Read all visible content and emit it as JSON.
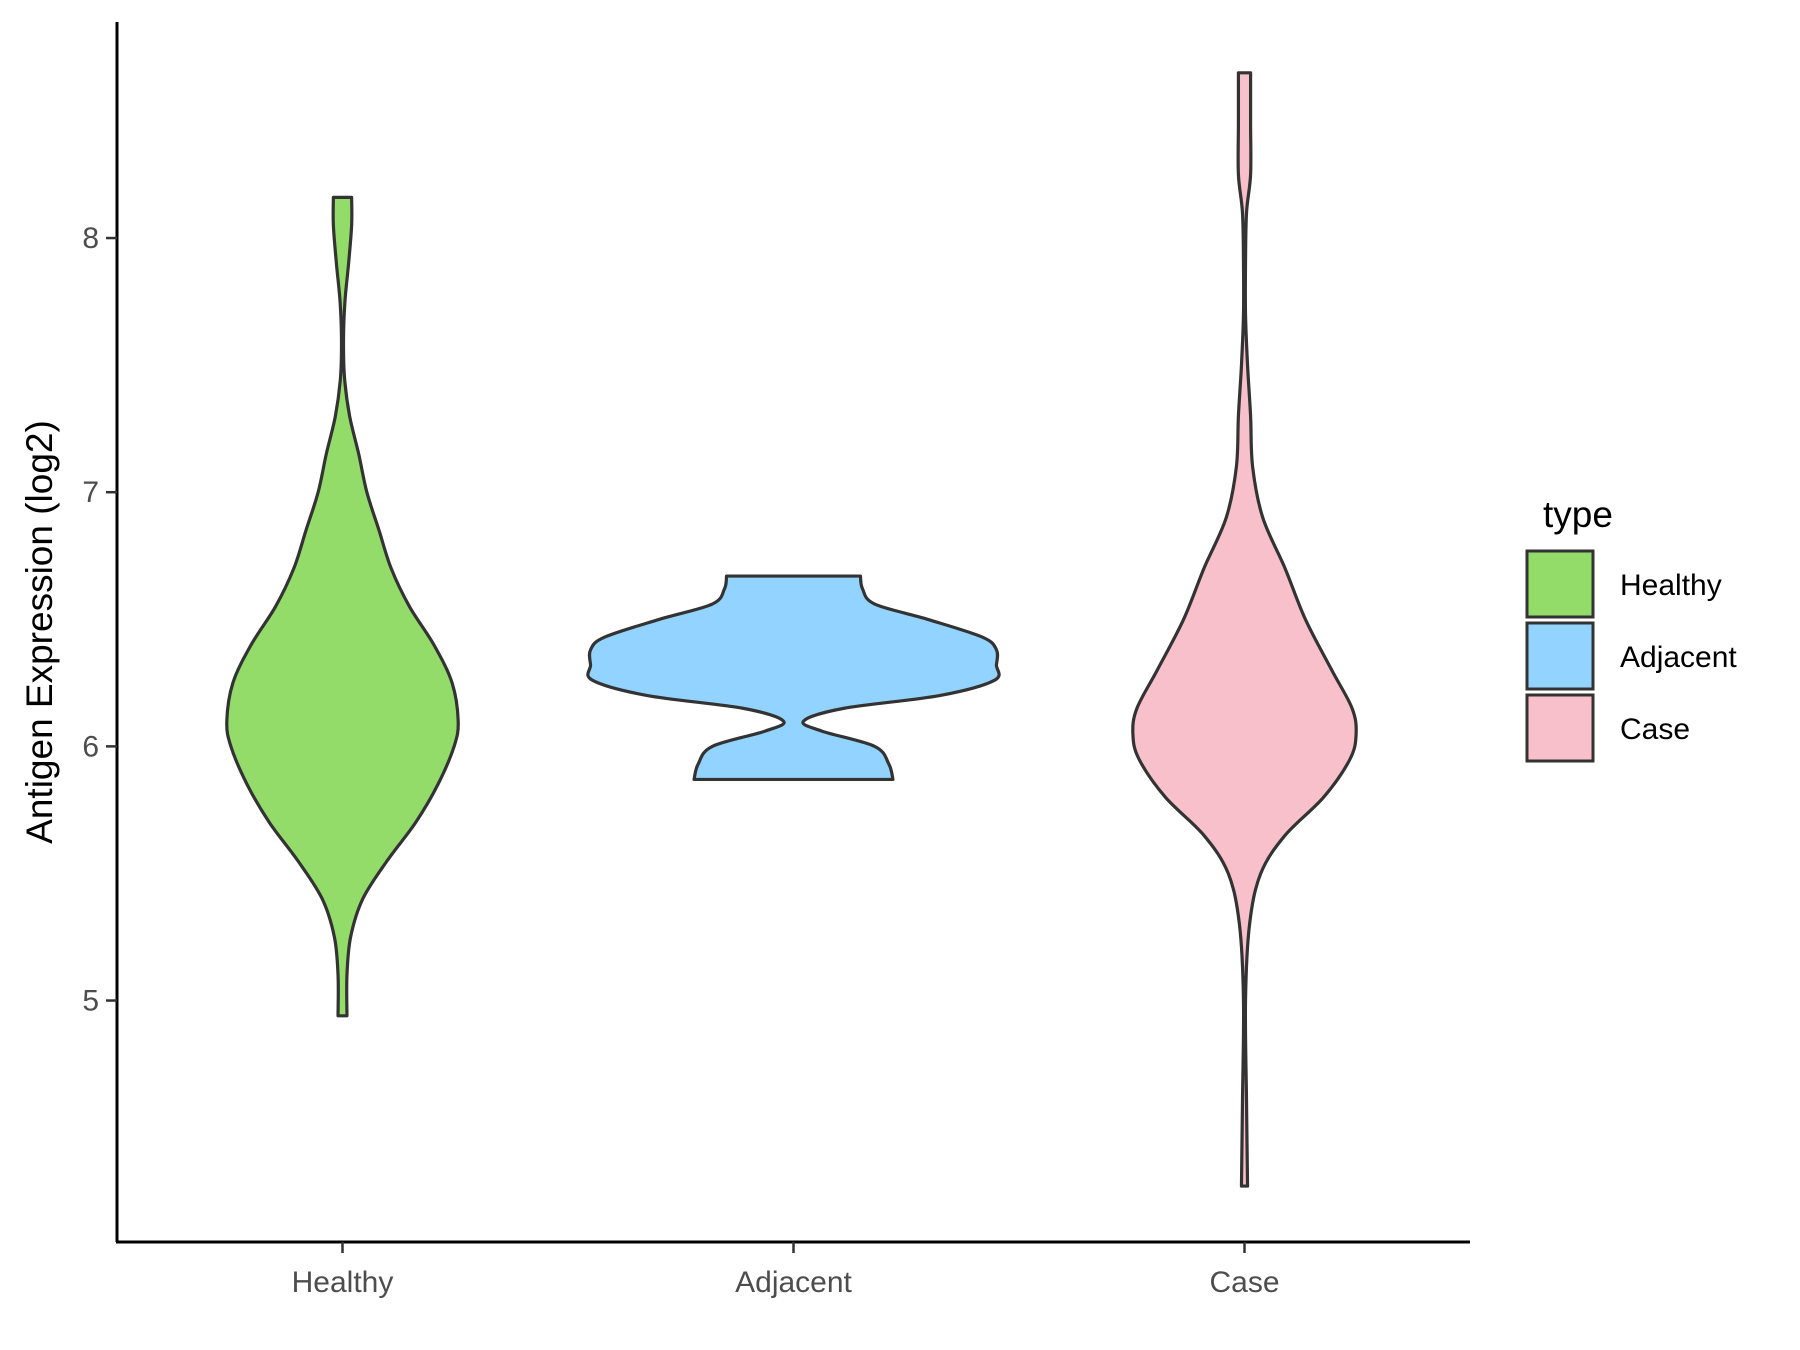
{
  "chart_data": {
    "type": "violin",
    "title": "",
    "xlabel": "",
    "ylabel": "Antigen Expression (log2)",
    "categories": [
      "Healthy",
      "Adjacent",
      "Case"
    ],
    "ylim": [
      4.05,
      8.85
    ],
    "yticks": [
      5,
      6,
      7,
      8
    ],
    "grid": false,
    "legend": {
      "title": "type",
      "position": "right",
      "entries": [
        "Healthy",
        "Adjacent",
        "Case"
      ]
    },
    "series": [
      {
        "name": "Healthy",
        "color": "#93dc6a",
        "min": 4.94,
        "max": 8.16,
        "density_profile": [
          [
            4.94,
            0.022
          ],
          [
            5.1,
            0.022
          ],
          [
            5.25,
            0.04
          ],
          [
            5.4,
            0.1
          ],
          [
            5.55,
            0.22
          ],
          [
            5.7,
            0.36
          ],
          [
            5.85,
            0.47
          ],
          [
            6.0,
            0.55
          ],
          [
            6.1,
            0.57
          ],
          [
            6.25,
            0.54
          ],
          [
            6.4,
            0.45
          ],
          [
            6.55,
            0.33
          ],
          [
            6.7,
            0.24
          ],
          [
            6.85,
            0.18
          ],
          [
            7.0,
            0.12
          ],
          [
            7.15,
            0.08
          ],
          [
            7.3,
            0.035
          ],
          [
            7.45,
            0.01
          ],
          [
            7.6,
            0.005
          ],
          [
            7.75,
            0.012
          ],
          [
            7.9,
            0.03
          ],
          [
            8.05,
            0.045
          ],
          [
            8.16,
            0.045
          ]
        ]
      },
      {
        "name": "Adjacent",
        "color": "#93d3ff",
        "min": 5.87,
        "max": 6.67,
        "density_profile": [
          [
            5.87,
            0.49
          ],
          [
            5.93,
            0.47
          ],
          [
            6.0,
            0.4
          ],
          [
            6.06,
            0.14
          ],
          [
            6.1,
            0.05
          ],
          [
            6.15,
            0.25
          ],
          [
            6.2,
            0.72
          ],
          [
            6.26,
            0.99
          ],
          [
            6.32,
            1.0
          ],
          [
            6.38,
            1.0
          ],
          [
            6.43,
            0.93
          ],
          [
            6.5,
            0.66
          ],
          [
            6.56,
            0.4
          ],
          [
            6.62,
            0.34
          ],
          [
            6.67,
            0.33
          ]
        ]
      },
      {
        "name": "Case",
        "color": "#f7c0cb",
        "min": 4.27,
        "max": 8.65,
        "density_profile": [
          [
            4.27,
            0.015
          ],
          [
            4.6,
            0.01
          ],
          [
            5.0,
            0.005
          ],
          [
            5.3,
            0.025
          ],
          [
            5.5,
            0.08
          ],
          [
            5.65,
            0.2
          ],
          [
            5.8,
            0.39
          ],
          [
            5.95,
            0.52
          ],
          [
            6.05,
            0.55
          ],
          [
            6.15,
            0.53
          ],
          [
            6.3,
            0.43
          ],
          [
            6.5,
            0.3
          ],
          [
            6.7,
            0.2
          ],
          [
            6.9,
            0.09
          ],
          [
            7.1,
            0.04
          ],
          [
            7.3,
            0.03
          ],
          [
            7.5,
            0.015
          ],
          [
            7.7,
            0.005
          ],
          [
            7.9,
            0.005
          ],
          [
            8.1,
            0.01
          ],
          [
            8.25,
            0.03
          ],
          [
            8.45,
            0.03
          ],
          [
            8.65,
            0.03
          ]
        ]
      }
    ]
  }
}
